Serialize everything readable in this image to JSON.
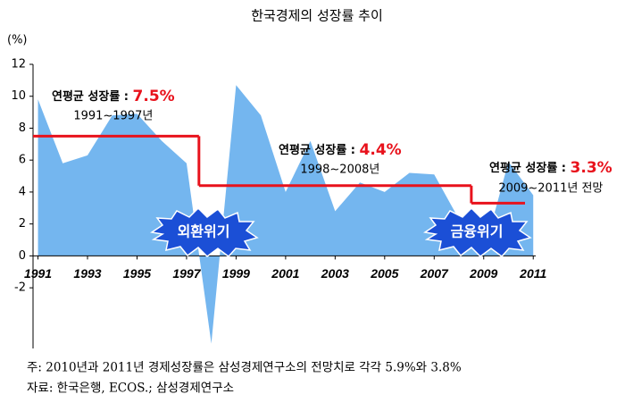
{
  "chart_data": {
    "type": "area",
    "title": "한국경제의 성장률 추이",
    "y_unit": "(%)",
    "x": [
      1991,
      1992,
      1993,
      1994,
      1995,
      1996,
      1997,
      1998,
      1999,
      2000,
      2001,
      2002,
      2003,
      2004,
      2005,
      2006,
      2007,
      2008,
      2009,
      2010,
      2011
    ],
    "values": [
      9.8,
      5.8,
      6.3,
      8.8,
      8.9,
      7.2,
      5.8,
      -5.5,
      10.7,
      8.8,
      4.0,
      7.2,
      2.8,
      4.6,
      4.0,
      5.2,
      5.1,
      2.3,
      0.2,
      5.9,
      3.8
    ],
    "color": "#74b6ef",
    "xlim": [
      1990.8,
      2011.1
    ],
    "xticks": [
      1991,
      1993,
      1995,
      1997,
      1999,
      2001,
      2003,
      2005,
      2007,
      2009,
      2011
    ],
    "ylim": [
      -5.8,
      12
    ],
    "yticks": [
      -2,
      0,
      2,
      4,
      6,
      8,
      10,
      12
    ],
    "averages": [
      {
        "label": "연평균 성장률 : ",
        "value": 7.5,
        "value_label": "7.5%",
        "period": "1991~1997년",
        "range": [
          1991,
          1997
        ]
      },
      {
        "label": "연평균 성장률 : ",
        "value": 4.4,
        "value_label": "4.4%",
        "period": "1998~2008년",
        "range": [
          1998,
          2008
        ]
      },
      {
        "label": "연평균 성장률 : ",
        "value": 3.3,
        "value_label": "3.3%",
        "period": "2009~2011년 전망",
        "range": [
          2009,
          2011
        ]
      }
    ],
    "average_color": "#e8121c",
    "events": [
      "외환위기",
      "금융위기"
    ],
    "notes": [
      "주: 2010년과 2011년 경제성장률은 삼성경제연구소의 전망치로 각각 5.9%와 3.8%",
      "자료: 한국은행, ECOS.; 삼성경제연구소"
    ]
  }
}
